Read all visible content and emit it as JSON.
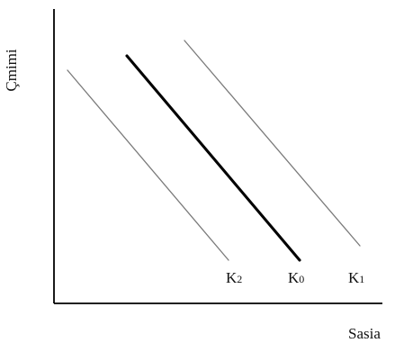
{
  "diagram": {
    "axes": {
      "y_label": "Çmimi",
      "x_label": "Sasia"
    },
    "lines": [
      {
        "id": "k2",
        "label_main": "K",
        "label_sub": "2",
        "color": "#7a7a7a",
        "emphasis": "thin"
      },
      {
        "id": "k0",
        "label_main": "K",
        "label_sub": "0",
        "color": "#000000",
        "emphasis": "thick"
      },
      {
        "id": "k1",
        "label_main": "K",
        "label_sub": "1",
        "color": "#7a7a7a",
        "emphasis": "thin"
      }
    ],
    "colors": {
      "axis": "#000000",
      "background": "#ffffff",
      "text": "#111111"
    }
  }
}
